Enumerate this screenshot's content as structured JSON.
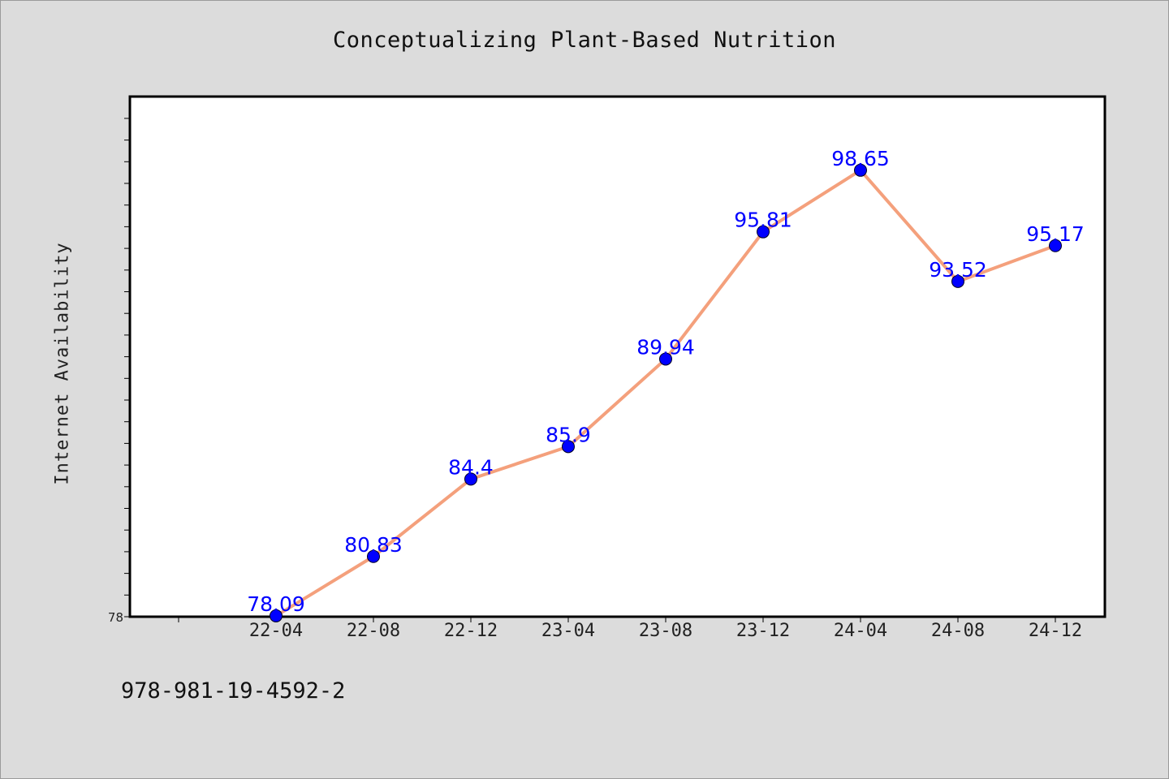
{
  "chart_data": {
    "type": "line",
    "title": "Conceptualizing Plant-Based Nutrition",
    "xlabel": "",
    "ylabel": "Internet Availability",
    "categories": [
      "22-04",
      "22-08",
      "22-12",
      "23-04",
      "23-08",
      "23-12",
      "24-04",
      "24-08",
      "24-12"
    ],
    "series": [
      {
        "values": [
          78.09,
          80.83,
          84.4,
          85.9,
          89.94,
          95.81,
          98.65,
          93.52,
          95.17
        ]
      }
    ],
    "value_labels": [
      "78.09",
      "80.83",
      "84.4",
      "85.9",
      "89.94",
      "95.81",
      "98.65",
      "93.52",
      "95.17"
    ],
    "ylim": [
      78.05,
      102.05
    ],
    "y_tick_labels": [
      "78"
    ],
    "grid": false,
    "legend": "none",
    "colors": {
      "line": "#f4a07c",
      "marker": "#0000ff",
      "labels": "#0000ff",
      "plot_bg": "#ffffff",
      "page_bg": "#dcdcdc"
    }
  },
  "footer_note": "978-981-19-4592-2"
}
